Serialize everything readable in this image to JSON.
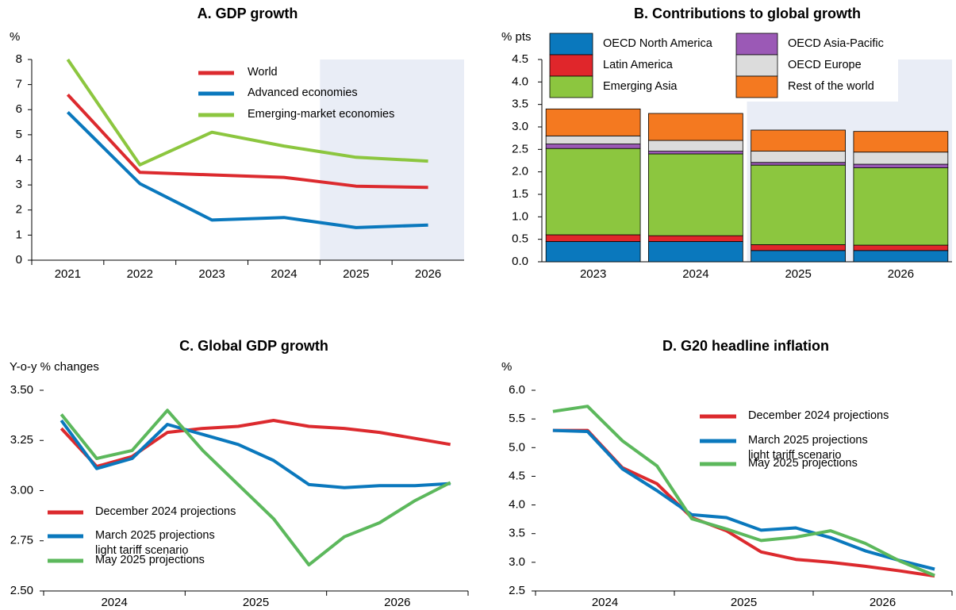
{
  "chart_data": [
    {
      "type": "line",
      "title": "A. GDP growth",
      "y_label": "%",
      "categories": [
        "2021",
        "2022",
        "2023",
        "2024",
        "2025",
        "2026"
      ],
      "ylim": [
        0,
        8
      ],
      "yticks": [
        0,
        1,
        2,
        3,
        4,
        5,
        6,
        7,
        8
      ],
      "series": [
        {
          "name": "World",
          "color": "#dc2a2e",
          "values": [
            6.6,
            3.5,
            3.4,
            3.3,
            2.95,
            2.9
          ]
        },
        {
          "name": "Advanced economies",
          "color": "#0a78bd",
          "values": [
            5.9,
            3.05,
            1.6,
            1.7,
            1.3,
            1.4
          ]
        },
        {
          "name": "Emerging-market economies",
          "color": "#8cc63f",
          "values": [
            8.0,
            3.8,
            5.1,
            4.55,
            4.1,
            3.95
          ]
        }
      ]
    },
    {
      "type": "stacked_bar",
      "title": "B. Contributions to global growth",
      "y_label": "% pts",
      "categories": [
        "2023",
        "2024",
        "2025",
        "2026"
      ],
      "ylim": [
        0,
        4.5
      ],
      "yticks": [
        {
          "value": 0,
          "label": "0.0"
        },
        {
          "value": 0.5,
          "label": "0.5"
        },
        {
          "value": 1,
          "label": "1.0"
        },
        {
          "value": 1.5,
          "label": "1.5"
        },
        {
          "value": 2,
          "label": "2.0"
        },
        {
          "value": 2.5,
          "label": "2.5"
        },
        {
          "value": 3,
          "label": "3.0"
        },
        {
          "value": 3.5,
          "label": "3.5"
        },
        {
          "value": 4,
          "label": "4.0"
        },
        {
          "value": 4.5,
          "label": "4.5"
        }
      ],
      "series": [
        {
          "name": "OECD North America",
          "color": "#0a78bd",
          "values": [
            0.45,
            0.45,
            0.25,
            0.25
          ]
        },
        {
          "name": "Latin America",
          "color": "#e0262b",
          "values": [
            0.15,
            0.13,
            0.13,
            0.12
          ]
        },
        {
          "name": "Emerging Asia",
          "color": "#8cc63f",
          "values": [
            1.92,
            1.82,
            1.77,
            1.72
          ]
        },
        {
          "name": "OECD Asia-Pacific",
          "color": "#9b59b6",
          "values": [
            0.1,
            0.06,
            0.06,
            0.08
          ]
        },
        {
          "name": "OECD Europe",
          "color": "#dcdcdc",
          "values": [
            0.18,
            0.24,
            0.25,
            0.27
          ]
        },
        {
          "name": "Rest of the world",
          "color": "#f47920",
          "values": [
            0.6,
            0.6,
            0.47,
            0.46
          ]
        }
      ]
    },
    {
      "type": "line",
      "title": "C. Global GDP growth",
      "y_label": "Y-o-y % changes",
      "categories": [
        null,
        null,
        null,
        null,
        null,
        null,
        null,
        null,
        null,
        null,
        null,
        null
      ],
      "group_labels": [
        "2024",
        "2025",
        "2026"
      ],
      "ylim": [
        2.5,
        3.5
      ],
      "yticks": [
        {
          "value": 2.5,
          "label": "2.50"
        },
        {
          "value": 2.75,
          "label": "2.75"
        },
        {
          "value": 3,
          "label": "3.00"
        },
        {
          "value": 3.25,
          "label": "3.25"
        },
        {
          "value": 3.5,
          "label": "3.50"
        }
      ],
      "series": [
        {
          "name": "December 2024 projections",
          "color": "#dc2a2e",
          "values": [
            3.31,
            3.12,
            3.17,
            3.29,
            3.31,
            3.32,
            3.35,
            3.32,
            3.31,
            3.29,
            3.26,
            3.23
          ]
        },
        {
          "name": "March 2025 projections\n light tariff scenario",
          "color": "#0a78bd",
          "values": [
            3.35,
            3.11,
            3.16,
            3.33,
            3.28,
            3.23,
            3.15,
            3.03,
            3.015,
            3.025,
            3.025,
            3.035
          ]
        },
        {
          "name": "May 2025 projections",
          "color": "#5cb85c",
          "values": [
            3.38,
            3.16,
            3.2,
            3.4,
            3.2,
            3.03,
            2.86,
            2.63,
            2.77,
            2.84,
            2.95,
            3.04
          ]
        }
      ]
    },
    {
      "type": "line",
      "title": "D. G20 headline inflation",
      "y_label": "%",
      "categories": [
        null,
        null,
        null,
        null,
        null,
        null,
        null,
        null,
        null,
        null,
        null,
        null
      ],
      "group_labels": [
        "2024",
        "2025",
        "2026"
      ],
      "ylim": [
        2.5,
        6.0
      ],
      "yticks": [
        {
          "value": 2.5,
          "label": "2.5"
        },
        {
          "value": 3,
          "label": "3.0"
        },
        {
          "value": 3.5,
          "label": "3.5"
        },
        {
          "value": 4,
          "label": "4.0"
        },
        {
          "value": 4.5,
          "label": "4.5"
        },
        {
          "value": 5,
          "label": "5.0"
        },
        {
          "value": 5.5,
          "label": "5.5"
        },
        {
          "value": 6,
          "label": "6.0"
        }
      ],
      "series": [
        {
          "name": "December 2024 projections",
          "color": "#dc2a2e",
          "values": [
            5.3,
            5.3,
            4.65,
            4.37,
            3.78,
            3.55,
            3.18,
            3.05,
            3.0,
            2.93,
            2.85,
            2.76
          ]
        },
        {
          "name": "March 2025 projections\n light tariff scenario",
          "color": "#0a78bd",
          "values": [
            5.3,
            5.28,
            4.63,
            4.25,
            3.83,
            3.78,
            3.56,
            3.6,
            3.43,
            3.2,
            3.03,
            2.88
          ]
        },
        {
          "name": "May 2025 projections",
          "color": "#5cb85c",
          "values": [
            5.63,
            5.72,
            5.12,
            4.68,
            3.76,
            3.58,
            3.38,
            3.44,
            3.55,
            3.33,
            3.02,
            2.77
          ]
        }
      ]
    }
  ]
}
